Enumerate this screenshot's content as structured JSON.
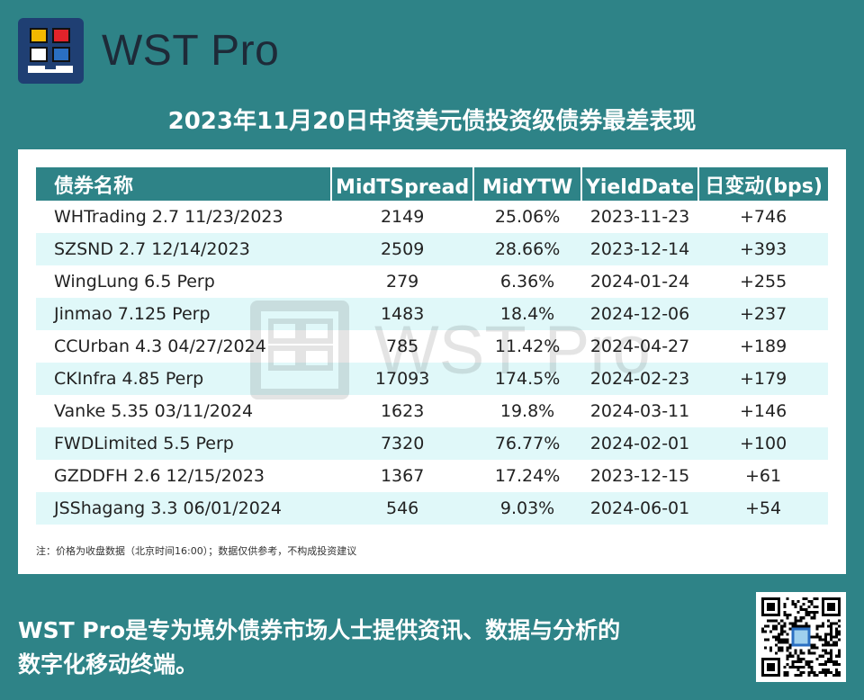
{
  "brand": {
    "name": "WST Pro"
  },
  "title": "2023年11月20日中资美元债投资级债券最差表现",
  "table": {
    "headers": [
      "债券名称",
      "MidTSpread",
      "MidYTW",
      "YieldDate",
      "日变动(bps)"
    ],
    "rows": [
      [
        "WHTrading 2.7 11/23/2023",
        "2149",
        "25.06%",
        "2023-11-23",
        "+746"
      ],
      [
        "SZSND 2.7 12/14/2023",
        "2509",
        "28.66%",
        "2023-12-14",
        "+393"
      ],
      [
        "WingLung 6.5 Perp",
        "279",
        "6.36%",
        "2024-01-24",
        "+255"
      ],
      [
        "Jinmao 7.125 Perp",
        "1483",
        "18.4%",
        "2024-12-06",
        "+237"
      ],
      [
        "CCUrban 4.3 04/27/2024",
        "785",
        "11.42%",
        "2024-04-27",
        "+189"
      ],
      [
        "CKInfra 4.85 Perp",
        "17093",
        "174.5%",
        "2024-02-23",
        "+179"
      ],
      [
        "Vanke 5.35 03/11/2024",
        "1623",
        "19.8%",
        "2024-03-11",
        "+146"
      ],
      [
        "FWDLimited 5.5 Perp",
        "7320",
        "76.77%",
        "2024-02-01",
        "+100"
      ],
      [
        "GZDDFH 2.6 12/15/2023",
        "1367",
        "17.24%",
        "2023-12-15",
        "+61"
      ],
      [
        "JSShagang 3.3 06/01/2024",
        "546",
        "9.03%",
        "2024-06-01",
        "+54"
      ]
    ]
  },
  "note": "注：价格为收盘数据（北京时间16:00）；数据仅供参考，不构成投资建议",
  "watermark": "WST Pro",
  "footer": {
    "line1": "WST Pro是专为境外债券市场人士提供资讯、数据与分析的",
    "line2": "数字化移动终端。"
  },
  "colors": {
    "teal": "#2e8387",
    "stripe": "#e0f8f9",
    "logo_bg": "#1f3f73"
  },
  "icons": {
    "logo": "wst-logo-icon",
    "qr": "qr-code-icon"
  }
}
